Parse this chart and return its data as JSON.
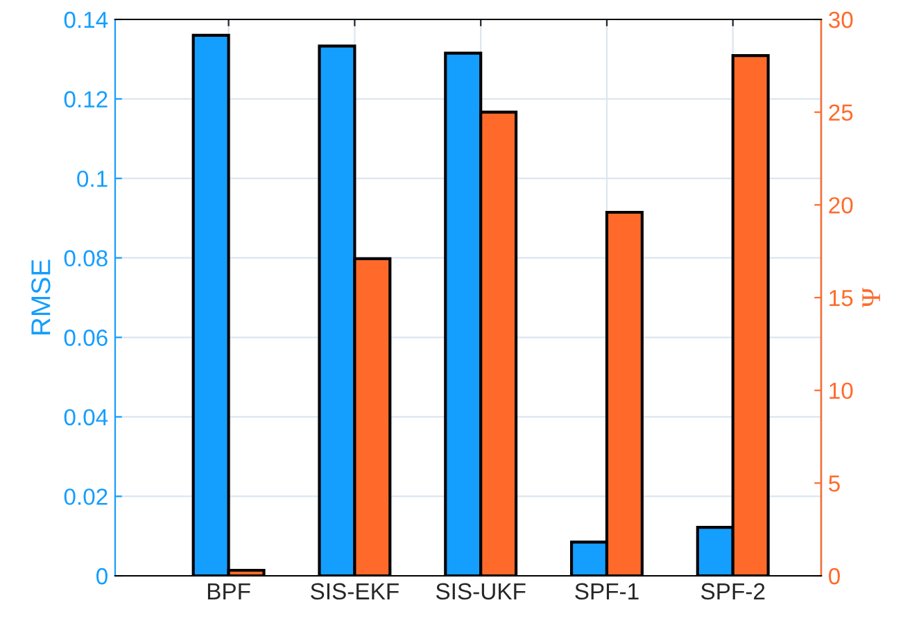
{
  "chart_data": {
    "type": "bar",
    "categories": [
      "BPF",
      "SIS-EKF",
      "SIS-UKF",
      "SPF-1",
      "SPF-2"
    ],
    "series": [
      {
        "color": "#149efe",
        "values": [
          0.136,
          0.1333,
          0.1315,
          0.0085,
          0.0122
        ]
      },
      {
        "color": "#ff6a2a",
        "axis": "y2",
        "values": [
          0.3,
          17.1,
          25.0,
          19.6,
          28.05
        ]
      }
    ],
    "ylabel": "RMSE",
    "y2label": "Ψ",
    "ylim": [
      0,
      0.14
    ],
    "yticks": [
      0,
      0.02,
      0.04,
      0.06,
      0.08,
      0.1,
      0.12,
      0.14
    ],
    "y2lim": [
      0,
      30
    ],
    "y2ticks": [
      0,
      5,
      10,
      15,
      20,
      25,
      30
    ],
    "grid": true,
    "legend": false
  }
}
